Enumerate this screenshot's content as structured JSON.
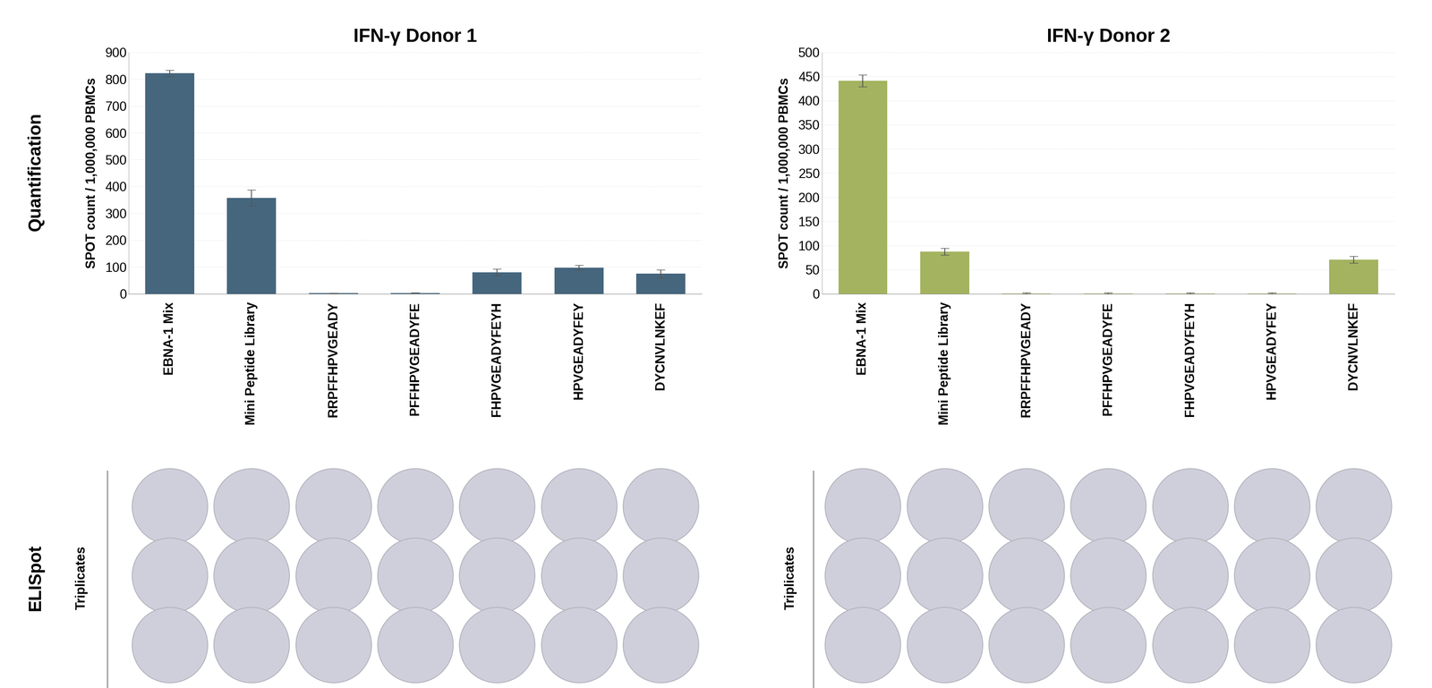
{
  "panel_labels": {
    "top": "Quantification",
    "bottom": "ELISpot"
  },
  "well_label": "Triplicates",
  "chart_data": [
    {
      "type": "bar",
      "title": "IFN-γ Donor 1",
      "y_label": "SPOT count / 1,000,000 PBMCs",
      "categories": [
        "EBNA-1 Mix",
        "Mini Peptide Library",
        "RRPFFHPVGEADY",
        "PFFHPVGEADYFE",
        "FHPVGEADYFEYH",
        "HPVGEADYFEY",
        "DYCNVLNKEF"
      ],
      "values": [
        822,
        357,
        2,
        3,
        80,
        98,
        75
      ],
      "errors": [
        12,
        30,
        1,
        1,
        12,
        8,
        15
      ],
      "color": "#46667e",
      "ylim": [
        0,
        900
      ],
      "yticks": [
        0,
        100,
        200,
        300,
        400,
        500,
        600,
        700,
        800,
        900
      ],
      "grid": true
    },
    {
      "type": "bar",
      "title": "IFN-γ Donor 2",
      "y_label": "SPOT count / 1,000,000 PBMCs",
      "categories": [
        "EBNA-1 Mix",
        "Mini Peptide Library",
        "RRPFFHPVGEADY",
        "PFFHPVGEADYFE",
        "FHPVGEADYFEYH",
        "HPVGEADYFEY",
        "DYCNVLNKEF"
      ],
      "values": [
        441,
        87,
        1,
        1,
        1,
        1,
        71
      ],
      "errors": [
        12,
        7,
        1,
        1,
        1,
        1,
        7
      ],
      "color": "#a3b35f",
      "ylim": [
        0,
        500
      ],
      "yticks": [
        0,
        50,
        100,
        150,
        200,
        250,
        300,
        350,
        400,
        450,
        500
      ],
      "grid": true
    }
  ]
}
